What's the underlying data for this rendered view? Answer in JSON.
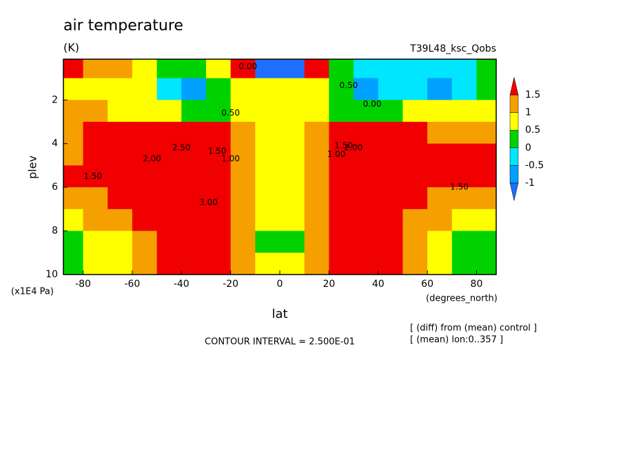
{
  "chart_data": {
    "type": "contour",
    "title": "air temperature",
    "subtitle": "(K)",
    "run_name": "T39L48_ksc_Qobs",
    "xlabel": "lat",
    "xunit": "(degrees_north)",
    "ylabel": "plev",
    "yunit": "(x1E4 Pa)",
    "xlim": [
      -88,
      88
    ],
    "ylim": [
      10,
      0.13
    ],
    "xticks": [
      -80,
      -60,
      -40,
      -20,
      0,
      20,
      40,
      60,
      80
    ],
    "yticks": [
      2,
      4,
      6,
      8,
      10
    ],
    "x": [
      -85,
      -75,
      -65,
      -55,
      -45,
      -35,
      -25,
      -15,
      -5,
      5,
      15,
      25,
      35,
      45,
      55,
      65,
      75,
      85
    ],
    "y": [
      0.5,
      1.5,
      2.5,
      3.5,
      4.5,
      5.5,
      6.5,
      7.5,
      8.5,
      9.5
    ],
    "values": [
      [
        1.5,
        1.2,
        1.1,
        0.8,
        0.3,
        0.2,
        0.7,
        1.6,
        -1.2,
        -1.2,
        1.6,
        0.3,
        -0.2,
        -0.3,
        -0.4,
        -0.3,
        -0.2,
        0.2
      ],
      [
        0.8,
        0.6,
        0.8,
        0.7,
        -0.3,
        -0.8,
        0.3,
        0.7,
        0.8,
        0.8,
        0.7,
        0.4,
        -0.7,
        -0.2,
        -0.3,
        -0.6,
        -0.2,
        0.3
      ],
      [
        1.1,
        1.2,
        0.9,
        0.9,
        0.7,
        0.3,
        0.4,
        0.7,
        0.6,
        0.6,
        0.7,
        0.4,
        0.3,
        0.4,
        0.6,
        0.7,
        0.8,
        0.8
      ],
      [
        1.3,
        1.6,
        1.8,
        1.9,
        2.0,
        2.0,
        1.8,
        1.2,
        0.7,
        0.7,
        1.2,
        1.8,
        2.0,
        1.9,
        1.6,
        1.3,
        1.2,
        1.1
      ],
      [
        1.4,
        1.6,
        2.0,
        2.2,
        2.5,
        3.0,
        2.2,
        1.3,
        0.8,
        0.8,
        1.3,
        2.2,
        2.8,
        2.4,
        2.0,
        1.7,
        1.6,
        1.6
      ],
      [
        1.6,
        1.8,
        2.0,
        2.2,
        2.6,
        3.0,
        2.2,
        1.3,
        0.7,
        0.7,
        1.3,
        2.3,
        2.8,
        2.3,
        1.9,
        1.7,
        1.6,
        1.6
      ],
      [
        1.3,
        1.4,
        1.6,
        1.9,
        2.3,
        2.8,
        2.2,
        1.2,
        0.7,
        0.7,
        1.2,
        2.2,
        2.5,
        2.0,
        1.6,
        1.3,
        1.2,
        1.1
      ],
      [
        0.9,
        1.1,
        1.3,
        1.6,
        2.0,
        2.4,
        2.0,
        1.2,
        0.6,
        0.6,
        1.2,
        2.0,
        2.2,
        1.8,
        1.3,
        1.1,
        0.9,
        0.8
      ],
      [
        0.3,
        0.6,
        0.9,
        1.3,
        1.7,
        2.0,
        1.8,
        1.0,
        0.4,
        0.4,
        1.0,
        1.8,
        1.9,
        1.6,
        1.1,
        0.8,
        0.4,
        0.3
      ],
      [
        0.4,
        0.6,
        0.9,
        1.2,
        1.6,
        1.8,
        1.6,
        1.1,
        0.7,
        0.7,
        1.1,
        1.6,
        1.7,
        1.5,
        1.1,
        0.7,
        0.4,
        0.3
      ]
    ],
    "levels": [
      -1,
      -0.5,
      0,
      0.5,
      1,
      1.5
    ],
    "colors": [
      "#1e6eff",
      "#00a0ff",
      "#00e6ff",
      "#00d200",
      "#ffff00",
      "#f5a000",
      "#f00000"
    ],
    "contour_labels": [
      {
        "text": "1.50",
        "x": -76,
        "y": 5.5
      },
      {
        "text": "2.00",
        "x": -52,
        "y": 4.7
      },
      {
        "text": "2.50",
        "x": -40,
        "y": 4.2
      },
      {
        "text": "3.00",
        "x": -29,
        "y": 6.7
      },
      {
        "text": "1.50",
        "x": -25.5,
        "y": 4.35
      },
      {
        "text": "1.00",
        "x": -20,
        "y": 4.7
      },
      {
        "text": "0.50",
        "x": -20,
        "y": 2.6
      },
      {
        "text": "0.00",
        "x": -13,
        "y": 0.47
      },
      {
        "text": "0.50",
        "x": 28,
        "y": 1.35
      },
      {
        "text": "0.00",
        "x": 37.6,
        "y": 2.2
      },
      {
        "text": "1.00",
        "x": 23,
        "y": 4.5
      },
      {
        "text": "1.50",
        "x": 26,
        "y": 4.1
      },
      {
        "text": "2.00",
        "x": 30,
        "y": 4.2
      },
      {
        "text": "1.50",
        "x": 73,
        "y": 6.0
      }
    ],
    "notes": [
      "CONTOUR INTERVAL = 2.500E-01",
      "[ (diff) from (mean) control ]",
      "[ (mean) lon:0..357 ]"
    ]
  }
}
